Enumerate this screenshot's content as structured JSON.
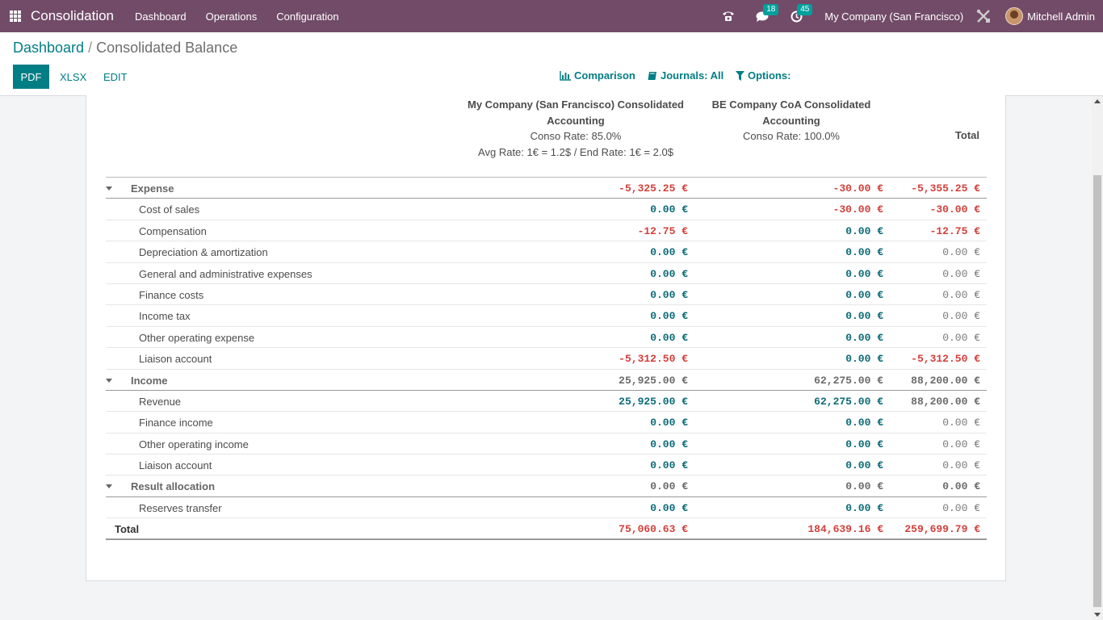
{
  "navbar": {
    "app_name": "Consolidation",
    "menus": [
      "Dashboard",
      "Operations",
      "Configuration"
    ],
    "phone_icon": "phone-icon",
    "messages_badge": "18",
    "activities_badge": "45",
    "company": "My Company (San Francisco)",
    "user": "Mitchell Admin",
    "colors": {
      "bar": "#714b67",
      "badge": "#00a09d"
    }
  },
  "control_panel": {
    "breadcrumb_root": "Dashboard",
    "breadcrumb_separator": "/",
    "breadcrumb_current": "Consolidated Balance",
    "buttons": {
      "pdf": "PDF",
      "xlsx": "XLSX",
      "edit": "EDIT"
    },
    "filters": {
      "comparison": "Comparison",
      "journals": "Journals: All",
      "options": "Options:"
    }
  },
  "report": {
    "columns": [
      {
        "title": "My Company (San Francisco) Consolidated",
        "title2": "Accounting",
        "rate": "Conso Rate: 85.0%",
        "rate2": "Avg Rate: 1€ = 1.2$ / End Rate: 1€ = 2.0$"
      },
      {
        "title": "BE Company CoA Consolidated",
        "title2": "Accounting",
        "rate": "Conso Rate: 100.0%"
      }
    ],
    "total_header": "Total",
    "rows": [
      {
        "type": "group",
        "label": "Expense",
        "v1": "-5,325.25 €",
        "v2": "-30.00 €",
        "v3": "-5,355.25 €"
      },
      {
        "type": "child",
        "label": "Cost of sales",
        "v1": "0.00 €",
        "v2": "-30.00 €",
        "v3": "-30.00 €"
      },
      {
        "type": "child",
        "label": "Compensation",
        "v1": "-12.75 €",
        "v2": "0.00 €",
        "v3": "-12.75 €"
      },
      {
        "type": "child",
        "label": "Depreciation & amortization",
        "v1": "0.00 €",
        "v2": "0.00 €",
        "v3": "0.00 €"
      },
      {
        "type": "child",
        "label": "General and administrative expenses",
        "v1": "0.00 €",
        "v2": "0.00 €",
        "v3": "0.00 €"
      },
      {
        "type": "child",
        "label": "Finance costs",
        "v1": "0.00 €",
        "v2": "0.00 €",
        "v3": "0.00 €"
      },
      {
        "type": "child",
        "label": "Income tax",
        "v1": "0.00 €",
        "v2": "0.00 €",
        "v3": "0.00 €"
      },
      {
        "type": "child",
        "label": "Other operating expense",
        "v1": "0.00 €",
        "v2": "0.00 €",
        "v3": "0.00 €"
      },
      {
        "type": "child",
        "label": "Liaison account",
        "v1": "-5,312.50 €",
        "v2": "0.00 €",
        "v3": "-5,312.50 €"
      },
      {
        "type": "group",
        "label": "Income",
        "v1": "25,925.00 €",
        "v2": "62,275.00 €",
        "v3": "88,200.00 €"
      },
      {
        "type": "child",
        "label": "Revenue",
        "v1": "25,925.00 €",
        "v2": "62,275.00 €",
        "v3": "88,200.00 €"
      },
      {
        "type": "child",
        "label": "Finance income",
        "v1": "0.00 €",
        "v2": "0.00 €",
        "v3": "0.00 €"
      },
      {
        "type": "child",
        "label": "Other operating income",
        "v1": "0.00 €",
        "v2": "0.00 €",
        "v3": "0.00 €"
      },
      {
        "type": "child",
        "label": "Liaison account",
        "v1": "0.00 €",
        "v2": "0.00 €",
        "v3": "0.00 €"
      },
      {
        "type": "group",
        "label": "Result allocation",
        "v1": "0.00 €",
        "v2": "0.00 €",
        "v3": "0.00 €"
      },
      {
        "type": "child",
        "label": "Reserves transfer",
        "v1": "0.00 €",
        "v2": "0.00 €",
        "v3": "0.00 €"
      },
      {
        "type": "total",
        "label": "Total",
        "v1": "75,060.63 €",
        "v2": "184,639.16 €",
        "v3": "259,699.79 €"
      }
    ],
    "colors": {
      "negative": "#d23f3a",
      "positive": "#0b6b77",
      "neutral": "#7a7a7a"
    }
  }
}
